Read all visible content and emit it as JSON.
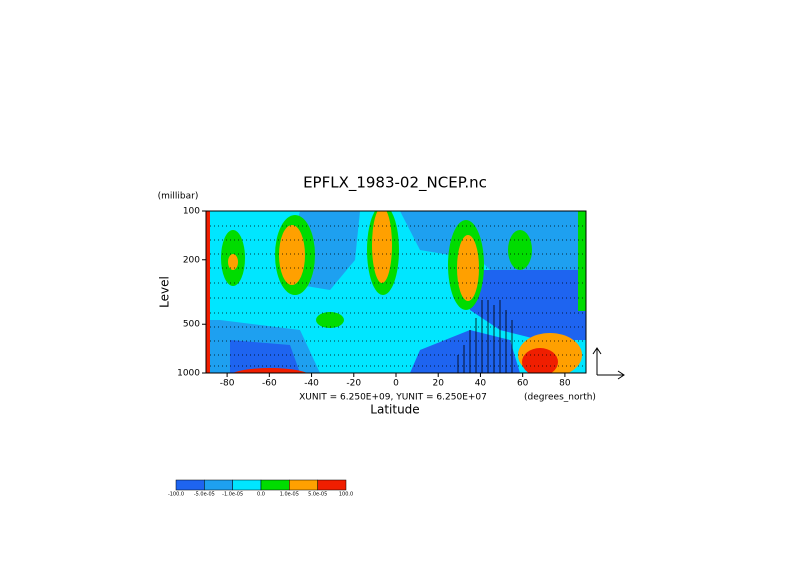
{
  "chart_data": {
    "type": "contour",
    "title": "EPFLX_1983-02_NCEP.nc",
    "y_unit_label": "(millibar)",
    "y_label": "Level",
    "x_label": "Latitude",
    "x_unit_label": "(degrees_north)",
    "vector_scale_label": "XUNIT = 6.250E+09, YUNIT = 6.250E+07",
    "xlim": [
      -90,
      90
    ],
    "xticks": [
      -80,
      -60,
      -40,
      -20,
      0,
      20,
      40,
      60,
      80
    ],
    "ylim": [
      1000,
      100
    ],
    "y_log": true,
    "yticks": [
      100,
      200,
      500,
      1000
    ],
    "levels": [
      {
        "value": -100,
        "label": "-100.0"
      },
      {
        "value": -5e-05,
        "label": "-5.0e-05"
      },
      {
        "value": -1e-05,
        "label": "-1.0e-05"
      },
      {
        "value": 0,
        "label": "0.0"
      },
      {
        "value": 1e-05,
        "label": "1.0e-05"
      },
      {
        "value": 5e-05,
        "label": "5.0e-05"
      },
      {
        "value": 100,
        "label": "100.0"
      }
    ],
    "colors": [
      "#1e64f0",
      "#1ea0f0",
      "#00e6ff",
      "#00dc00",
      "#ffa000",
      "#f01e00"
    ]
  }
}
